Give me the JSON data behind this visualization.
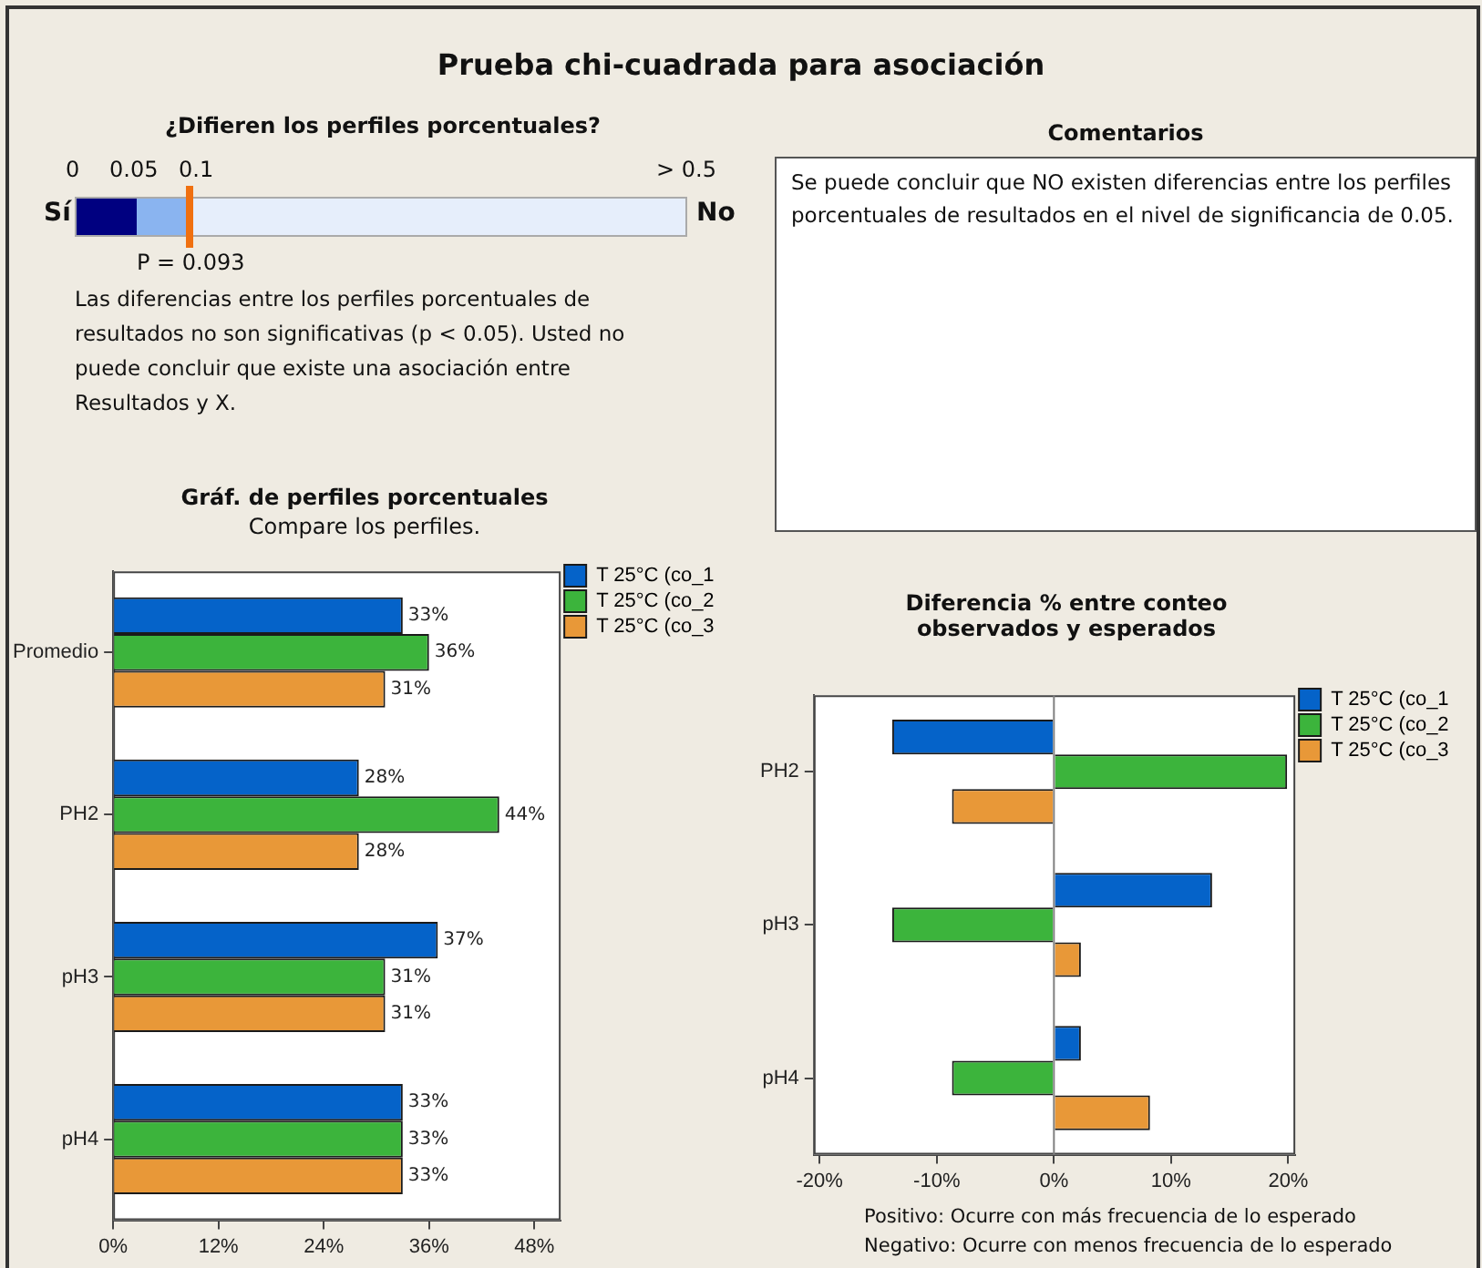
{
  "chart_data": [
    {
      "type": "other",
      "title": "Prueba chi-cuadrada para asociación",
      "subtitle": "¿Difieren los perfiles porcentuales?",
      "annotations": [
        "0",
        "0.05",
        "0.1",
        "> 0.5",
        "Sí",
        "No",
        "P = 0.093",
        "Las diferencias entre los perfiles porcentuales de resultados no son significativas (p < 0.05). Usted no puede concluir que existe una asociación entre Resultados y X."
      ]
    },
    {
      "type": "other",
      "title": "Comentarios",
      "annotations": [
        "Se  puede concluir que NO existen diferencias entre los perfiles porcentuales de resultados en el nivel de significancia de 0.05."
      ]
    },
    {
      "type": "bar",
      "orientation": "horizontal",
      "title": "Gráf. de perfiles porcentuales",
      "subtitle": "Compare los perfiles.",
      "categories": [
        "Promedio",
        "PH2",
        "pH3",
        "pH4"
      ],
      "series": [
        {
          "name": "T 25°C (co_1",
          "color": "#0563c9",
          "values": [
            33,
            28,
            37,
            33
          ],
          "value_labels": [
            "33%",
            "28%",
            "37%",
            "33%"
          ]
        },
        {
          "name": "T 25°C (co_2",
          "color": "#3cb43c",
          "values": [
            36,
            44,
            31,
            33
          ],
          "value_labels": [
            "36%",
            "44%",
            "31%",
            "33%"
          ]
        },
        {
          "name": "T 25°C (co_3",
          "color": "#e89838",
          "values": [
            31,
            28,
            31,
            33
          ],
          "value_labels": [
            "31%",
            "28%",
            "31%",
            "33%"
          ]
        }
      ],
      "xlim": [
        0,
        51
      ],
      "xticks": [
        {
          "value": 0,
          "label": "0%"
        },
        {
          "value": 12,
          "label": "12%"
        },
        {
          "value": 24,
          "label": "24%"
        },
        {
          "value": 36,
          "label": "36%"
        },
        {
          "value": 48,
          "label": "48%"
        }
      ],
      "legend": "top right"
    },
    {
      "type": "bar",
      "orientation": "horizontal",
      "title": "Diferencia % entre conteo observados y esperados",
      "categories": [
        "PH2",
        "pH3",
        "pH4"
      ],
      "series": [
        {
          "name": "T 25°C (co_1",
          "color": "#0563c9",
          "values": [
            -13.8,
            13.5,
            2.3
          ]
        },
        {
          "name": "T 25°C (co_2",
          "color": "#3cb43c",
          "values": [
            19.9,
            -13.8,
            -8.7
          ]
        },
        {
          "name": "T 25°C (co_3",
          "color": "#e89838",
          "values": [
            -8.7,
            2.3,
            8.2
          ]
        }
      ],
      "xlim": [
        -20.5,
        20.6
      ],
      "xticks": [
        {
          "value": -20,
          "label": "-20%"
        },
        {
          "value": -10,
          "label": "-10%"
        },
        {
          "value": 0,
          "label": "0%"
        },
        {
          "value": 10,
          "label": "10%"
        },
        {
          "value": 20,
          "label": "20%"
        }
      ],
      "legend": "top right",
      "ref_lines": [
        {
          "axis": "x",
          "value": 0,
          "color": "#808080"
        }
      ],
      "annotations": [
        "Positivo: Ocurre con más frecuencia de lo esperado",
        "Negativo: Ocurre con menos frecuencia de lo esperado"
      ]
    }
  ]
}
